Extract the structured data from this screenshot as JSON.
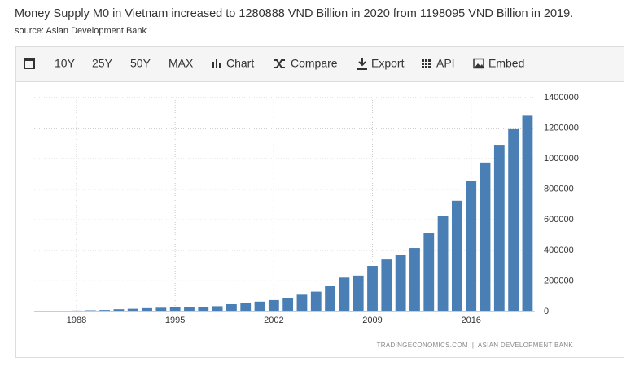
{
  "chart_data": {
    "type": "bar",
    "title": "Money Supply M0 in Vietnam increased to 1280888 VND Billion in 2020 from 1198095 VND Billion in 2019.",
    "source": "source: Asian Development Bank",
    "x": [
      1985,
      1986,
      1987,
      1988,
      1989,
      1990,
      1991,
      1992,
      1993,
      1994,
      1995,
      1996,
      1997,
      1998,
      1999,
      2000,
      2001,
      2002,
      2003,
      2004,
      2005,
      2006,
      2007,
      2008,
      2009,
      2010,
      2011,
      2012,
      2013,
      2014,
      2015,
      2016,
      2017,
      2018,
      2019,
      2020
    ],
    "values": [
      1000,
      3000,
      5000,
      6000,
      8000,
      10000,
      15000,
      18000,
      22000,
      25000,
      28000,
      30000,
      32000,
      35000,
      48000,
      55000,
      65000,
      75000,
      90000,
      110000,
      130000,
      165000,
      222000,
      235000,
      298000,
      340000,
      370000,
      415000,
      511000,
      625000,
      725000,
      857000,
      975000,
      1091000,
      1198095,
      1280888
    ],
    "color": "#4a7fb5",
    "xlim": [
      1984.5,
      2020.5
    ],
    "xticks": [
      1988,
      1995,
      2002,
      2009,
      2016
    ],
    "ylim": [
      0,
      1400000
    ],
    "yticks": [
      0,
      200000,
      400000,
      600000,
      800000,
      1000000,
      1200000,
      1400000
    ],
    "grid": true,
    "footer": "TRADINGECONOMICS.COM  |  ASIAN DEVELOPMENT BANK"
  },
  "toolbar": [
    "10Y",
    "25Y",
    "50Y",
    "MAX",
    "Chart",
    "Compare",
    "Export",
    "API",
    "Embed"
  ]
}
